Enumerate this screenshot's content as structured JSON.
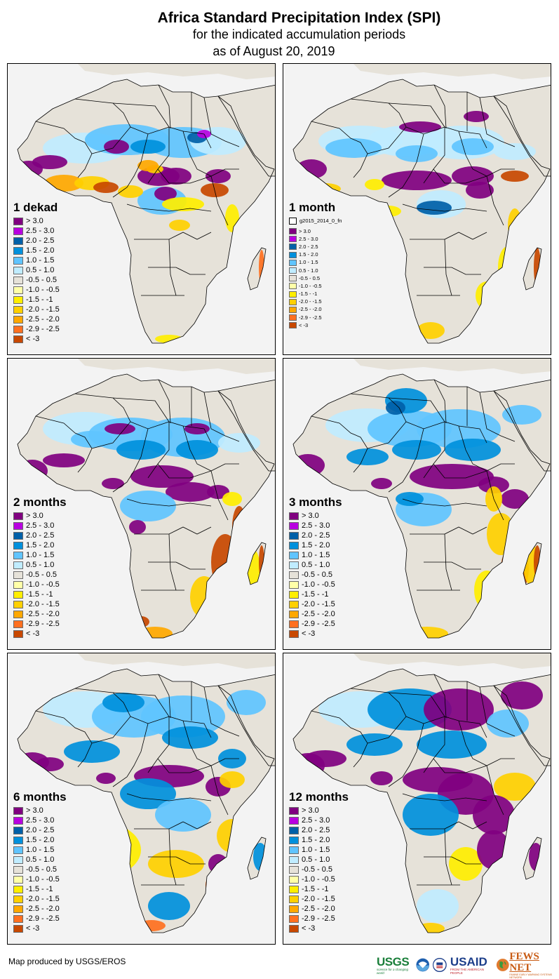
{
  "header": {
    "title": "Africa Standard Precipitation Index (SPI)",
    "subtitle": "for the indicated accumulation periods",
    "date_line": "as of August 20, 2019"
  },
  "legend_classes": [
    {
      "label": "> 3.0",
      "color": "#800080"
    },
    {
      "label": "2.5 - 3.0",
      "color": "#b800e0"
    },
    {
      "label": "2.0 - 2.5",
      "color": "#0060a8"
    },
    {
      "label": "1.5 - 2.0",
      "color": "#0090dc"
    },
    {
      "label": "1.0 - 1.5",
      "color": "#60c4ff"
    },
    {
      "label": "0.5 - 1.0",
      "color": "#c0ecff"
    },
    {
      "label": "-0.5 - 0.5",
      "color": "#e6e2d9"
    },
    {
      "label": "-1.0 - -0.5",
      "color": "#ffffa8"
    },
    {
      "label": "-1.5 - -1",
      "color": "#ffee00"
    },
    {
      "label": "-2.0 - -1.5",
      "color": "#ffd000"
    },
    {
      "label": "-2.5 - -2.0",
      "color": "#ffa800"
    },
    {
      "label": "-2.9 - -2.5",
      "color": "#ff7020"
    },
    {
      "label": "< -3",
      "color": "#c84800"
    }
  ],
  "panels": [
    {
      "period": "1 dekad",
      "extra_legend_item": null
    },
    {
      "period": "1 month",
      "extra_legend_item": "g2015_2014_0_fn"
    },
    {
      "period": "2 months",
      "extra_legend_item": null
    },
    {
      "period": "3 months",
      "extra_legend_item": null
    },
    {
      "period": "6 months",
      "extra_legend_item": null
    },
    {
      "period": "12 months",
      "extra_legend_item": null
    }
  ],
  "footer": {
    "credit": "Map produced by USGS/EROS",
    "logos": {
      "usgs": "USGS",
      "usgs_tagline": "science for a changing world",
      "noaa": "NOAA",
      "usaid": "USAID",
      "usaid_tagline": "FROM THE AMERICAN PEOPLE",
      "fewsnet": "FEWS NET",
      "fewsnet_tagline": "FAMINE EARLY WARNING SYSTEMS NETWORK"
    }
  },
  "colors": {
    "ocean": "#f3f3f3",
    "land_neutral": "#e6e2d9",
    "border": "#000000"
  }
}
